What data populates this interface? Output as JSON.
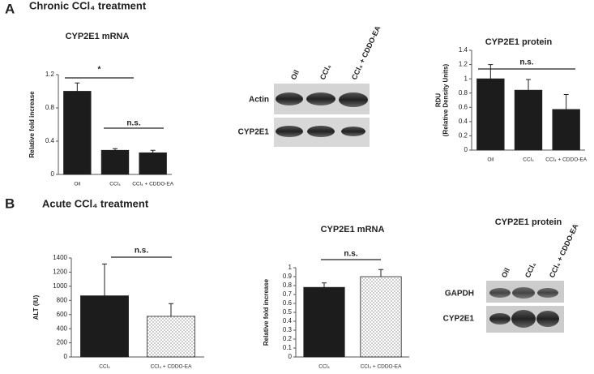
{
  "panels": [
    {
      "label": "A",
      "title": "Chronic CCl₄ treatment"
    },
    {
      "label": "B",
      "title": "Acute CCl₄ treatment"
    }
  ],
  "blots": [
    {
      "columns": [
        "Oil",
        "CCl₄",
        "CCl₄ + CDDO-EA"
      ],
      "rows": [
        "Actin",
        "CYP2E1"
      ]
    },
    {
      "title": "CYP2E1 protein",
      "columns": [
        "Oil",
        "CCl₄",
        "CCl₄ + CDDO-EA"
      ],
      "rows": [
        "GAPDH",
        "CYP2E1"
      ]
    }
  ],
  "chart_data": [
    {
      "type": "bar",
      "title": "CYP2E1 mRNA",
      "ylabel": [
        "Relative fold increase"
      ],
      "categories": [
        "Oil",
        "CCl₄",
        "CCl₄ + CDDO-EA"
      ],
      "values": [
        1.0,
        0.29,
        0.26
      ],
      "errors": [
        0.1,
        0.02,
        0.03
      ],
      "fills": [
        "#1c1c1c",
        "#1c1c1c",
        "#1c1c1c"
      ],
      "ylim": [
        0,
        1.2
      ],
      "yticks": [
        0,
        0.4,
        0.8,
        1.2
      ],
      "grid": false,
      "annotations": [
        "*",
        "n.s."
      ]
    },
    {
      "type": "bar",
      "title": "CYP2E1 protein",
      "ylabel": [
        "RDU",
        "(Relative Density Units)"
      ],
      "categories": [
        "Oil",
        "CCl₄",
        "CCl₄ + CDDO-EA"
      ],
      "values": [
        1.0,
        0.84,
        0.57
      ],
      "errors": [
        0.2,
        0.15,
        0.21
      ],
      "fills": [
        "#1c1c1c",
        "#1c1c1c",
        "#1c1c1c"
      ],
      "ylim": [
        0,
        1.4
      ],
      "yticks": [
        0,
        0.2,
        0.4,
        0.6,
        0.8,
        1,
        1.2,
        1.4
      ],
      "grid": false,
      "annotations": [
        "n.s."
      ]
    },
    {
      "type": "bar",
      "ylabel": [
        "ALT (IU)"
      ],
      "categories": [
        "CCl₄",
        "CCl₄ + CDDO-EA"
      ],
      "values": [
        865,
        575
      ],
      "errors": [
        450,
        180
      ],
      "fills": [
        "#1c1c1c",
        "dotted"
      ],
      "ylim": [
        0,
        1400
      ],
      "yticks": [
        0,
        200,
        400,
        600,
        800,
        1000,
        1200,
        1400
      ],
      "grid": false,
      "annotations": [
        "n.s."
      ]
    },
    {
      "type": "bar",
      "title": "CYP2E1 mRNA",
      "ylabel": [
        "Relative fold increase"
      ],
      "categories": [
        "CCl₄",
        "CCl₄ + CDDO-EA"
      ],
      "values": [
        0.78,
        0.9
      ],
      "errors": [
        0.05,
        0.08
      ],
      "fills": [
        "#1c1c1c",
        "dotted"
      ],
      "ylim": [
        0,
        1
      ],
      "yticks": [
        0,
        0.1,
        0.2,
        0.3,
        0.4,
        0.5,
        0.6,
        0.7,
        0.8,
        0.9,
        1
      ],
      "grid": false,
      "annotations": [
        "n.s."
      ]
    }
  ]
}
